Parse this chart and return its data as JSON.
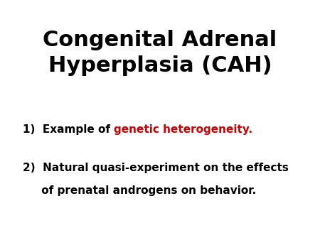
{
  "background_color": "#ffffff",
  "title_line1": "Congenital Adrenal",
  "title_line2": "Hyperplasia (CAH)",
  "title_color": "#000000",
  "title_fontsize": 22,
  "title_fontweight": "bold",
  "item1_prefix": "1)  Example of ",
  "item1_highlight": "genetic heterogeneity.",
  "item1_highlight_color": "#cc0000",
  "item2_line1": "2)  Natural quasi-experiment on the effects",
  "item2_line2": "     of prenatal androgens on behavior.",
  "item_color": "#000000",
  "item_fontsize": 11,
  "item_fontweight": "bold"
}
